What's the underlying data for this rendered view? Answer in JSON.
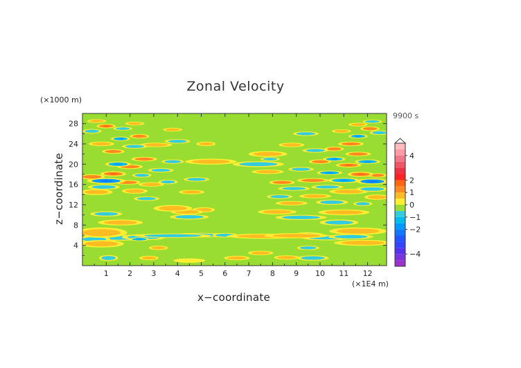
{
  "chart_data": {
    "type": "heatmap",
    "title": "Zonal Velocity",
    "xlabel": "x−coordinate",
    "ylabel": "z−coordinate",
    "x_units": "(×1E4 m)",
    "z_units": "(×1000 m)",
    "time_label": "9900 s",
    "xlim": [
      0,
      12.8
    ],
    "ylim": [
      0,
      30
    ],
    "x_ticks": [
      {
        "value": 1,
        "label": "1"
      },
      {
        "value": 2,
        "label": "2"
      },
      {
        "value": 3,
        "label": "3"
      },
      {
        "value": 4,
        "label": "4"
      },
      {
        "value": 5,
        "label": "5"
      },
      {
        "value": 6,
        "label": "6"
      },
      {
        "value": 7,
        "label": "7"
      },
      {
        "value": 8,
        "label": "8"
      },
      {
        "value": 9,
        "label": "9"
      },
      {
        "value": 10,
        "label": "10"
      },
      {
        "value": 11,
        "label": "11"
      },
      {
        "value": 12,
        "label": "12"
      }
    ],
    "y_ticks": [
      {
        "value": 4,
        "label": "4"
      },
      {
        "value": 8,
        "label": "8"
      },
      {
        "value": 12,
        "label": "12"
      },
      {
        "value": 16,
        "label": "16"
      },
      {
        "value": 20,
        "label": "20"
      },
      {
        "value": 24,
        "label": "24"
      },
      {
        "value": 28,
        "label": "28"
      }
    ],
    "colorbar": {
      "range": [
        -5,
        5
      ],
      "levels": [
        {
          "from": -5.0,
          "to": -4.5,
          "color": "#9933cc"
        },
        {
          "from": -4.5,
          "to": -4.0,
          "color": "#7a33dd"
        },
        {
          "from": -4.0,
          "to": -3.5,
          "color": "#5533ee"
        },
        {
          "from": -3.5,
          "to": -3.0,
          "color": "#3344ff"
        },
        {
          "from": -3.0,
          "to": -2.5,
          "color": "#2255ff"
        },
        {
          "from": -2.5,
          "to": -2.0,
          "color": "#1177ff"
        },
        {
          "from": -2.0,
          "to": -1.5,
          "color": "#0099ff"
        },
        {
          "from": -1.5,
          "to": -1.0,
          "color": "#00bbee"
        },
        {
          "from": -1.0,
          "to": -0.5,
          "color": "#33ccdd"
        },
        {
          "from": -0.5,
          "to": 0.0,
          "color": "#99dd33"
        },
        {
          "from": 0.0,
          "to": 0.5,
          "color": "#ffee33"
        },
        {
          "from": 0.5,
          "to": 1.0,
          "color": "#ffbb22"
        },
        {
          "from": 1.0,
          "to": 1.5,
          "color": "#ff8822"
        },
        {
          "from": 1.5,
          "to": 2.0,
          "color": "#ff6611"
        },
        {
          "from": 2.0,
          "to": 2.5,
          "color": "#ff2222"
        },
        {
          "from": 2.5,
          "to": 3.0,
          "color": "#ee3344"
        },
        {
          "from": 3.0,
          "to": 3.5,
          "color": "#ee5566"
        },
        {
          "from": 3.5,
          "to": 4.0,
          "color": "#ee7788"
        },
        {
          "from": 4.0,
          "to": 4.5,
          "color": "#ff99aa"
        },
        {
          "from": 4.5,
          "to": 5.0,
          "color": "#ffbbbb"
        }
      ],
      "tick_labels": [
        {
          "value": 4,
          "label": "4"
        },
        {
          "value": 2,
          "label": "2"
        },
        {
          "value": 1,
          "label": "1"
        },
        {
          "value": 0,
          "label": "0"
        },
        {
          "value": -1,
          "label": "−1"
        },
        {
          "value": -2,
          "label": "−2"
        },
        {
          "value": -4,
          "label": "−4"
        }
      ]
    },
    "background_value": -0.2,
    "features": [
      {
        "x": 0.8,
        "z": 6.5,
        "rx": 0.8,
        "rz": 0.7,
        "value": 0.8
      },
      {
        "x": 0.5,
        "z": 5.2,
        "rx": 0.5,
        "rz": 0.4,
        "value": -0.7
      },
      {
        "x": 0.8,
        "z": 4.3,
        "rx": 0.7,
        "rz": 0.5,
        "value": 0.7
      },
      {
        "x": 1.5,
        "z": 5.5,
        "rx": 0.9,
        "rz": 0.4,
        "value": -0.6
      },
      {
        "x": 2.6,
        "z": 5.6,
        "rx": 0.7,
        "rz": 0.4,
        "value": -0.7
      },
      {
        "x": 2.4,
        "z": 5.2,
        "rx": 0.3,
        "rz": 0.25,
        "value": -1.3
      },
      {
        "x": 3.8,
        "z": 5.9,
        "rx": 1.2,
        "rz": 0.3,
        "value": -0.7
      },
      {
        "x": 5.0,
        "z": 6.0,
        "rx": 1.0,
        "rz": 0.3,
        "value": -0.6
      },
      {
        "x": 6.0,
        "z": 6.0,
        "rx": 0.4,
        "rz": 0.3,
        "value": -0.8
      },
      {
        "x": 2.8,
        "z": 1.5,
        "rx": 0.3,
        "rz": 0.3,
        "value": 0.7
      },
      {
        "x": 3.2,
        "z": 3.5,
        "rx": 0.3,
        "rz": 0.3,
        "value": 0.7
      },
      {
        "x": 1.1,
        "z": 1.5,
        "rx": 0.3,
        "rz": 0.4,
        "value": -0.6
      },
      {
        "x": 4.5,
        "z": 1.0,
        "rx": 0.5,
        "rz": 0.3,
        "value": 0.3
      },
      {
        "x": 7.7,
        "z": 5.8,
        "rx": 1.2,
        "rz": 0.35,
        "value": 0.8
      },
      {
        "x": 9.0,
        "z": 5.9,
        "rx": 1.0,
        "rz": 0.35,
        "value": 0.9
      },
      {
        "x": 9.5,
        "z": 6.0,
        "rx": 0.5,
        "rz": 0.4,
        "value": -0.7
      },
      {
        "x": 10.3,
        "z": 5.5,
        "rx": 0.8,
        "rz": 0.35,
        "value": -0.6
      },
      {
        "x": 11.3,
        "z": 5.7,
        "rx": 0.7,
        "rz": 0.35,
        "value": -0.6
      },
      {
        "x": 11.6,
        "z": 6.8,
        "rx": 0.9,
        "rz": 0.5,
        "value": 0.8
      },
      {
        "x": 11.8,
        "z": 4.5,
        "rx": 0.9,
        "rz": 0.4,
        "value": 0.8
      },
      {
        "x": 9.5,
        "z": 3.5,
        "rx": 0.35,
        "rz": 0.3,
        "value": -0.7
      },
      {
        "x": 9.7,
        "z": 1.5,
        "rx": 0.5,
        "rz": 0.35,
        "value": -0.6
      },
      {
        "x": 8.6,
        "z": 1.6,
        "rx": 0.4,
        "rz": 0.3,
        "value": 0.7
      },
      {
        "x": 7.5,
        "z": 2.5,
        "rx": 0.4,
        "rz": 0.3,
        "value": 0.7
      },
      {
        "x": 6.5,
        "z": 1.5,
        "rx": 0.4,
        "rz": 0.3,
        "value": 0.6
      },
      {
        "x": 4.5,
        "z": 9.6,
        "rx": 0.6,
        "rz": 0.35,
        "value": -0.7
      },
      {
        "x": 4.4,
        "z": 10.6,
        "rx": 0.5,
        "rz": 0.35,
        "value": 0.7
      },
      {
        "x": 3.8,
        "z": 11.3,
        "rx": 0.6,
        "rz": 0.45,
        "value": 0.8
      },
      {
        "x": 5.1,
        "z": 11.0,
        "rx": 0.35,
        "rz": 0.35,
        "value": 0.6
      },
      {
        "x": 1.6,
        "z": 8.5,
        "rx": 0.7,
        "rz": 0.4,
        "value": 0.7
      },
      {
        "x": 9.2,
        "z": 9.5,
        "rx": 0.8,
        "rz": 0.35,
        "value": -0.7
      },
      {
        "x": 8.2,
        "z": 10.6,
        "rx": 0.6,
        "rz": 0.35,
        "value": 0.7
      },
      {
        "x": 10.8,
        "z": 8.5,
        "rx": 0.6,
        "rz": 0.4,
        "value": -0.7
      },
      {
        "x": 11.0,
        "z": 10.5,
        "rx": 0.8,
        "rz": 0.4,
        "value": 0.8
      },
      {
        "x": 1.0,
        "z": 10.2,
        "rx": 0.5,
        "rz": 0.35,
        "value": -0.7
      },
      {
        "x": 0.6,
        "z": 14.5,
        "rx": 0.5,
        "rz": 0.4,
        "value": 0.9
      },
      {
        "x": 0.9,
        "z": 15.5,
        "rx": 0.5,
        "rz": 0.35,
        "value": -0.8
      },
      {
        "x": 1.0,
        "z": 16.7,
        "rx": 0.6,
        "rz": 0.4,
        "value": -1.6
      },
      {
        "x": 0.4,
        "z": 17.5,
        "rx": 0.4,
        "rz": 0.35,
        "value": 1.0
      },
      {
        "x": 1.3,
        "z": 18.1,
        "rx": 0.4,
        "rz": 0.35,
        "value": 1.1
      },
      {
        "x": 1.9,
        "z": 16.4,
        "rx": 0.4,
        "rz": 0.3,
        "value": 1.0
      },
      {
        "x": 1.5,
        "z": 20.0,
        "rx": 0.4,
        "rz": 0.35,
        "value": -1.2
      },
      {
        "x": 2.0,
        "z": 19.5,
        "rx": 0.4,
        "rz": 0.3,
        "value": 1.0
      },
      {
        "x": 2.5,
        "z": 17.8,
        "rx": 0.3,
        "rz": 0.3,
        "value": -1.0
      },
      {
        "x": 2.2,
        "z": 14.7,
        "rx": 0.4,
        "rz": 0.35,
        "value": 0.8
      },
      {
        "x": 2.9,
        "z": 16.0,
        "rx": 0.4,
        "rz": 0.3,
        "value": 0.9
      },
      {
        "x": 3.3,
        "z": 18.8,
        "rx": 0.4,
        "rz": 0.3,
        "value": -1.0
      },
      {
        "x": 2.6,
        "z": 21.0,
        "rx": 0.4,
        "rz": 0.3,
        "value": 1.0
      },
      {
        "x": 3.8,
        "z": 20.5,
        "rx": 0.35,
        "rz": 0.3,
        "value": -0.9
      },
      {
        "x": 1.3,
        "z": 22.5,
        "rx": 0.35,
        "rz": 0.3,
        "value": 1.0
      },
      {
        "x": 0.8,
        "z": 24.0,
        "rx": 0.4,
        "rz": 0.3,
        "value": 0.9
      },
      {
        "x": 1.6,
        "z": 25.0,
        "rx": 0.3,
        "rz": 0.3,
        "value": -1.2
      },
      {
        "x": 2.2,
        "z": 23.5,
        "rx": 0.4,
        "rz": 0.3,
        "value": -1.0
      },
      {
        "x": 2.4,
        "z": 25.5,
        "rx": 0.3,
        "rz": 0.3,
        "value": 1.0
      },
      {
        "x": 3.1,
        "z": 23.8,
        "rx": 0.5,
        "rz": 0.3,
        "value": 0.9
      },
      {
        "x": 0.4,
        "z": 26.5,
        "rx": 0.3,
        "rz": 0.3,
        "value": -1.0
      },
      {
        "x": 1.0,
        "z": 27.5,
        "rx": 0.3,
        "rz": 0.3,
        "value": 1.1
      },
      {
        "x": 0.6,
        "z": 28.5,
        "rx": 0.3,
        "rz": 0.25,
        "value": 0.8
      },
      {
        "x": 1.7,
        "z": 27.0,
        "rx": 0.3,
        "rz": 0.25,
        "value": -0.8
      },
      {
        "x": 2.2,
        "z": 28.0,
        "rx": 0.3,
        "rz": 0.25,
        "value": 0.8
      },
      {
        "x": 4.0,
        "z": 24.5,
        "rx": 0.4,
        "rz": 0.3,
        "value": -1.0
      },
      {
        "x": 3.8,
        "z": 26.8,
        "rx": 0.3,
        "rz": 0.25,
        "value": 0.8
      },
      {
        "x": 5.4,
        "z": 20.5,
        "rx": 0.8,
        "rz": 0.4,
        "value": 0.8
      },
      {
        "x": 5.2,
        "z": 24.0,
        "rx": 0.3,
        "rz": 0.3,
        "value": 0.7
      },
      {
        "x": 3.6,
        "z": 16.5,
        "rx": 0.3,
        "rz": 0.3,
        "value": -0.8
      },
      {
        "x": 2.7,
        "z": 13.2,
        "rx": 0.4,
        "rz": 0.3,
        "value": -0.9
      },
      {
        "x": 4.6,
        "z": 14.5,
        "rx": 0.4,
        "rz": 0.3,
        "value": 0.7
      },
      {
        "x": 4.8,
        "z": 17.0,
        "rx": 0.4,
        "rz": 0.3,
        "value": -0.7
      },
      {
        "x": 7.8,
        "z": 22.0,
        "rx": 0.6,
        "rz": 0.4,
        "value": 0.8
      },
      {
        "x": 7.4,
        "z": 20.0,
        "rx": 0.8,
        "rz": 0.4,
        "value": -0.8
      },
      {
        "x": 7.8,
        "z": 18.5,
        "rx": 0.5,
        "rz": 0.3,
        "value": 0.8
      },
      {
        "x": 7.9,
        "z": 21.0,
        "rx": 0.3,
        "rz": 0.25,
        "value": -0.7
      },
      {
        "x": 8.8,
        "z": 23.8,
        "rx": 0.4,
        "rz": 0.3,
        "value": 0.8
      },
      {
        "x": 9.4,
        "z": 26.0,
        "rx": 0.4,
        "rz": 0.3,
        "value": -0.8
      },
      {
        "x": 9.8,
        "z": 22.7,
        "rx": 0.4,
        "rz": 0.3,
        "value": -1.0
      },
      {
        "x": 10.6,
        "z": 23.0,
        "rx": 0.3,
        "rz": 0.3,
        "value": 1.0
      },
      {
        "x": 11.3,
        "z": 24.0,
        "rx": 0.4,
        "rz": 0.3,
        "value": 1.0
      },
      {
        "x": 11.6,
        "z": 25.5,
        "rx": 0.3,
        "rz": 0.3,
        "value": -1.2
      },
      {
        "x": 12.1,
        "z": 27.0,
        "rx": 0.3,
        "rz": 0.3,
        "value": 1.0
      },
      {
        "x": 12.2,
        "z": 28.4,
        "rx": 0.3,
        "rz": 0.25,
        "value": -1.0
      },
      {
        "x": 12.5,
        "z": 26.2,
        "rx": 0.3,
        "rz": 0.3,
        "value": -1.0
      },
      {
        "x": 11.6,
        "z": 27.8,
        "rx": 0.3,
        "rz": 0.25,
        "value": 0.9
      },
      {
        "x": 10.9,
        "z": 26.5,
        "rx": 0.3,
        "rz": 0.25,
        "value": 0.8
      },
      {
        "x": 10.0,
        "z": 20.5,
        "rx": 0.35,
        "rz": 0.3,
        "value": 1.0
      },
      {
        "x": 10.6,
        "z": 21.0,
        "rx": 0.35,
        "rz": 0.3,
        "value": -1.1
      },
      {
        "x": 11.2,
        "z": 19.8,
        "rx": 0.4,
        "rz": 0.3,
        "value": 1.1
      },
      {
        "x": 12.0,
        "z": 20.5,
        "rx": 0.4,
        "rz": 0.3,
        "value": -1.3
      },
      {
        "x": 11.6,
        "z": 22.0,
        "rx": 0.4,
        "rz": 0.3,
        "value": 1.0
      },
      {
        "x": 9.2,
        "z": 19.0,
        "rx": 0.4,
        "rz": 0.3,
        "value": -0.9
      },
      {
        "x": 10.4,
        "z": 18.3,
        "rx": 0.4,
        "rz": 0.3,
        "value": -1.2
      },
      {
        "x": 11.7,
        "z": 18.0,
        "rx": 0.4,
        "rz": 0.35,
        "value": 1.2
      },
      {
        "x": 12.2,
        "z": 16.6,
        "rx": 0.5,
        "rz": 0.4,
        "value": -1.6
      },
      {
        "x": 11.0,
        "z": 16.8,
        "rx": 0.5,
        "rz": 0.35,
        "value": -1.1
      },
      {
        "x": 12.4,
        "z": 17.8,
        "rx": 0.3,
        "rz": 0.3,
        "value": 1.0
      },
      {
        "x": 9.7,
        "z": 16.8,
        "rx": 0.5,
        "rz": 0.3,
        "value": 1.0
      },
      {
        "x": 8.4,
        "z": 16.4,
        "rx": 0.4,
        "rz": 0.3,
        "value": 1.0
      },
      {
        "x": 8.9,
        "z": 15.2,
        "rx": 0.5,
        "rz": 0.3,
        "value": -1.0
      },
      {
        "x": 10.3,
        "z": 15.5,
        "rx": 0.5,
        "rz": 0.3,
        "value": -0.9
      },
      {
        "x": 11.2,
        "z": 14.6,
        "rx": 0.6,
        "rz": 0.35,
        "value": 0.9
      },
      {
        "x": 12.2,
        "z": 15.1,
        "rx": 0.5,
        "rz": 0.35,
        "value": -0.9
      },
      {
        "x": 12.4,
        "z": 13.5,
        "rx": 0.4,
        "rz": 0.35,
        "value": 0.8
      },
      {
        "x": 9.8,
        "z": 13.7,
        "rx": 0.5,
        "rz": 0.3,
        "value": 0.8
      },
      {
        "x": 10.5,
        "z": 12.5,
        "rx": 0.5,
        "rz": 0.35,
        "value": -0.7
      },
      {
        "x": 11.8,
        "z": 12.2,
        "rx": 0.3,
        "rz": 0.3,
        "value": -0.8
      },
      {
        "x": 8.8,
        "z": 12.3,
        "rx": 0.5,
        "rz": 0.3,
        "value": 0.7
      },
      {
        "x": 8.3,
        "z": 13.6,
        "rx": 0.4,
        "rz": 0.3,
        "value": -0.8
      }
    ]
  }
}
